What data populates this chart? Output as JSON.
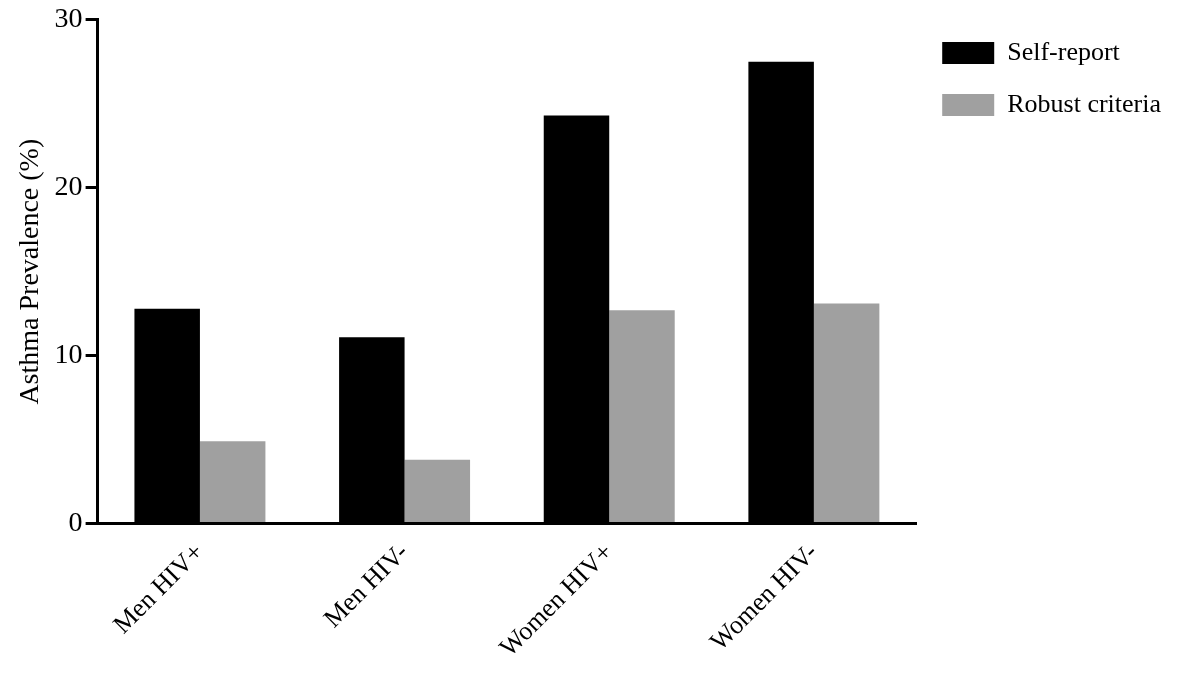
{
  "chart_data": {
    "type": "bar",
    "ylabel": "Asthma Prevalence (%)",
    "categories": [
      "Men HIV+",
      "Men HIV-",
      "Women HIV+",
      "Women HIV-"
    ],
    "series": [
      {
        "name": "Self-report",
        "color": "#000000",
        "values": [
          12.8,
          11.1,
          24.3,
          27.5
        ]
      },
      {
        "name": "Robust criteria",
        "color": "#a0a0a0",
        "values": [
          4.9,
          3.8,
          12.7,
          13.1
        ]
      }
    ],
    "ylim": [
      0,
      30
    ],
    "yticks": [
      0,
      10,
      20,
      30
    ],
    "grid": false,
    "legend": "top right"
  }
}
